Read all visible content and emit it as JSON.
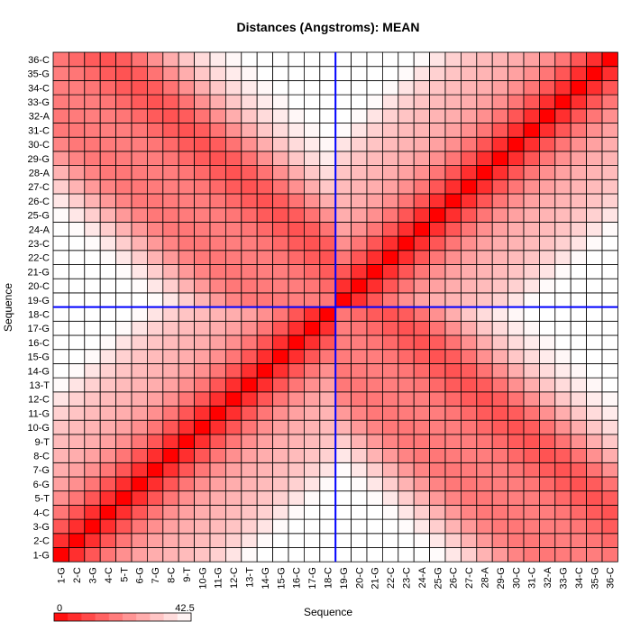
{
  "chart_data": {
    "type": "heatmap",
    "title": "Distances (Angstroms):  MEAN",
    "xlabel": "Sequence",
    "ylabel": "Sequence",
    "labels": [
      "1-G",
      "2-C",
      "3-G",
      "4-C",
      "5-T",
      "6-G",
      "7-G",
      "8-C",
      "9-T",
      "10-G",
      "11-G",
      "12-C",
      "13-T",
      "14-G",
      "15-G",
      "16-C",
      "17-G",
      "18-C",
      "19-G",
      "20-C",
      "21-G",
      "22-C",
      "23-C",
      "24-A",
      "25-G",
      "26-C",
      "27-C",
      "28-A",
      "29-G",
      "30-C",
      "31-C",
      "32-A",
      "33-G",
      "34-C",
      "35-G",
      "36-C"
    ],
    "value_range": [
      0,
      42.5
    ],
    "colorbar_labels": [
      "0",
      "42.5"
    ],
    "colorscale": [
      "#ff0000",
      "#ffffff"
    ],
    "highlight": {
      "row": "18-C",
      "col": "18-C",
      "color": "#0000ff"
    },
    "distance_model": "helix",
    "grid": true
  }
}
